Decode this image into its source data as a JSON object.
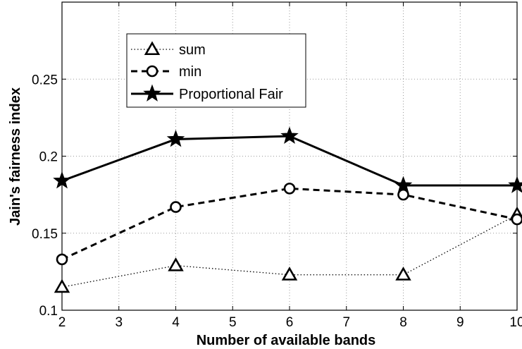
{
  "chart_data": {
    "type": "line",
    "xlabel": "Number of available bands",
    "ylabel": "Jain's fairness index",
    "xlim": [
      2,
      10
    ],
    "ylim": [
      0.1,
      0.3
    ],
    "x_ticks": [
      "2",
      "3",
      "4",
      "5",
      "6",
      "7",
      "8",
      "9",
      "10"
    ],
    "y_ticks": [
      "0.1",
      "0.15",
      "0.2",
      "0.25"
    ],
    "grid": true,
    "legend_position": "top-left",
    "x": [
      2,
      4,
      6,
      8,
      10
    ],
    "series": [
      {
        "name": "sum",
        "marker": "triangle",
        "line_style": "dotted",
        "values": [
          0.115,
          0.129,
          0.123,
          0.123,
          0.162
        ]
      },
      {
        "name": "min",
        "marker": "circle",
        "line_style": "dashed",
        "values": [
          0.133,
          0.167,
          0.179,
          0.175,
          0.159
        ]
      },
      {
        "name": "Proportional Fair",
        "marker": "star",
        "line_style": "solid",
        "values": [
          0.184,
          0.211,
          0.213,
          0.181,
          0.181
        ]
      }
    ]
  }
}
